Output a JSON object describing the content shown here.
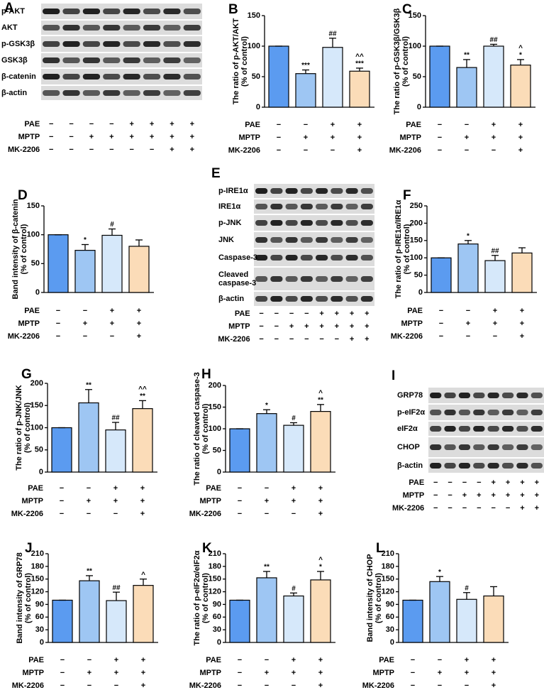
{
  "chart_data": [
    {
      "type": "bar",
      "letter": "B",
      "ylabel": [
        "The ratio of p-AKT/AKT",
        "(% of control)"
      ],
      "values": [
        100,
        55,
        98,
        59
      ],
      "errors": [
        0,
        6,
        15,
        5
      ],
      "colors": [
        "#5b9bf0",
        "#9ec6f3",
        "#d6e8fa",
        "#fbdcb8"
      ],
      "annotations": [
        null,
        [
          "***"
        ],
        [
          "##"
        ],
        [
          "^^",
          "***"
        ]
      ],
      "ylim": [
        0,
        150
      ],
      "yticks": [
        0,
        50,
        100,
        150
      ],
      "treatments": [
        {
          "label": "PAE",
          "signs": [
            "−",
            "−",
            "+",
            "+"
          ]
        },
        {
          "label": "MPTP",
          "signs": [
            "−",
            "+",
            "+",
            "+"
          ]
        },
        {
          "label": "MK-2206",
          "signs": [
            "−",
            "−",
            "−",
            "+"
          ]
        }
      ]
    },
    {
      "type": "bar",
      "letter": "C",
      "ylabel": [
        "The ratio of p-GSK3β/GSK3β",
        "(% of control)"
      ],
      "values": [
        100,
        65,
        100,
        69
      ],
      "errors": [
        0,
        13,
        3,
        9
      ],
      "colors": [
        "#5b9bf0",
        "#9ec6f3",
        "#d6e8fa",
        "#fbdcb8"
      ],
      "annotations": [
        null,
        [
          "**"
        ],
        [
          "##"
        ],
        [
          "^",
          "*"
        ]
      ],
      "ylim": [
        0,
        150
      ],
      "yticks": [
        0,
        50,
        100,
        150
      ],
      "treatments": [
        {
          "label": "PAE",
          "signs": [
            "−",
            "−",
            "+",
            "+"
          ]
        },
        {
          "label": "MPTP",
          "signs": [
            "−",
            "+",
            "+",
            "+"
          ]
        },
        {
          "label": "MK-2206",
          "signs": [
            "−",
            "−",
            "−",
            "+"
          ]
        }
      ]
    },
    {
      "type": "bar",
      "letter": "D",
      "ylabel": [
        "Band intensity of β-catenin",
        "(% of control)"
      ],
      "values": [
        100,
        73,
        99,
        80
      ],
      "errors": [
        0,
        10,
        11,
        11
      ],
      "colors": [
        "#5b9bf0",
        "#9ec6f3",
        "#d6e8fa",
        "#fbdcb8"
      ],
      "annotations": [
        null,
        [
          "*"
        ],
        [
          "#"
        ],
        null
      ],
      "ylim": [
        0,
        150
      ],
      "yticks": [
        0,
        50,
        100,
        150
      ],
      "treatments": [
        {
          "label": "PAE",
          "signs": [
            "−",
            "−",
            "+",
            "+"
          ]
        },
        {
          "label": "MPTP",
          "signs": [
            "−",
            "+",
            "+",
            "+"
          ]
        },
        {
          "label": "MK-2206",
          "signs": [
            "−",
            "−",
            "−",
            "+"
          ]
        }
      ]
    },
    {
      "type": "bar",
      "letter": "F",
      "ylabel": [
        "The ratio of p-IRE1α/IRE1α",
        "(% of control)"
      ],
      "values": [
        100,
        140,
        92,
        114
      ],
      "errors": [
        0,
        10,
        15,
        15
      ],
      "colors": [
        "#5b9bf0",
        "#9ec6f3",
        "#d6e8fa",
        "#fbdcb8"
      ],
      "annotations": [
        null,
        [
          "*"
        ],
        [
          "##"
        ],
        null
      ],
      "ylim": [
        0,
        250
      ],
      "yticks": [
        0,
        50,
        100,
        150,
        200,
        250
      ],
      "treatments": [
        {
          "label": "PAE",
          "signs": [
            "−",
            "−",
            "+",
            "+"
          ]
        },
        {
          "label": "MPTP",
          "signs": [
            "−",
            "+",
            "+",
            "+"
          ]
        },
        {
          "label": "MK-2206",
          "signs": [
            "−",
            "−",
            "−",
            "+"
          ]
        }
      ]
    },
    {
      "type": "bar",
      "letter": "G",
      "ylabel": [
        "The ratio of p-JNK/JNK",
        "(% of control)"
      ],
      "values": [
        100,
        156,
        95,
        143
      ],
      "errors": [
        0,
        30,
        17,
        18
      ],
      "colors": [
        "#5b9bf0",
        "#9ec6f3",
        "#d6e8fa",
        "#fbdcb8"
      ],
      "annotations": [
        null,
        [
          "**"
        ],
        [
          "##"
        ],
        [
          "^^",
          "**"
        ]
      ],
      "ylim": [
        0,
        200
      ],
      "yticks": [
        0,
        50,
        100,
        150,
        200
      ],
      "treatments": [
        {
          "label": "PAE",
          "signs": [
            "−",
            "−",
            "+",
            "+"
          ]
        },
        {
          "label": "MPTP",
          "signs": [
            "−",
            "+",
            "+",
            "+"
          ]
        },
        {
          "label": "MK-2206",
          "signs": [
            "−",
            "−",
            "−",
            "+"
          ]
        }
      ]
    },
    {
      "type": "bar",
      "letter": "H",
      "ylabel": [
        "The ratio of cleaved caspase-3",
        "(% of control)"
      ],
      "values": [
        100,
        135,
        108,
        140
      ],
      "errors": [
        0,
        9,
        6,
        16
      ],
      "colors": [
        "#5b9bf0",
        "#9ec6f3",
        "#d6e8fa",
        "#fbdcb8"
      ],
      "annotations": [
        null,
        [
          "*"
        ],
        [
          "#"
        ],
        [
          "^",
          "**"
        ]
      ],
      "ylim": [
        0,
        200
      ],
      "yticks": [
        0,
        50,
        100,
        150,
        200
      ],
      "treatments": [
        {
          "label": "PAE",
          "signs": [
            "−",
            "−",
            "+",
            "+"
          ]
        },
        {
          "label": "MPTP",
          "signs": [
            "−",
            "+",
            "+",
            "+"
          ]
        },
        {
          "label": "MK-2206",
          "signs": [
            "−",
            "−",
            "−",
            "+"
          ]
        }
      ]
    },
    {
      "type": "bar",
      "letter": "J",
      "ylabel": [
        "Band intensity of GRP78",
        "(% of control)"
      ],
      "values": [
        100,
        146,
        99,
        135
      ],
      "errors": [
        0,
        12,
        20,
        15
      ],
      "colors": [
        "#5b9bf0",
        "#9ec6f3",
        "#d6e8fa",
        "#fbdcb8"
      ],
      "annotations": [
        null,
        [
          "**"
        ],
        [
          "##"
        ],
        [
          "^"
        ]
      ],
      "ylim": [
        0,
        210
      ],
      "yticks": [
        0,
        30,
        60,
        90,
        120,
        150,
        180,
        210
      ],
      "treatments": [
        {
          "label": "PAE",
          "signs": [
            "−",
            "−",
            "+",
            "+"
          ]
        },
        {
          "label": "MPTP",
          "signs": [
            "−",
            "+",
            "+",
            "+"
          ]
        },
        {
          "label": "MK-2206",
          "signs": [
            "−",
            "−",
            "−",
            "+"
          ]
        }
      ]
    },
    {
      "type": "bar",
      "letter": "K",
      "ylabel": [
        "The ratio of p-eIF2α/eIF2α",
        "(% of control)"
      ],
      "values": [
        100,
        153,
        110,
        148
      ],
      "errors": [
        0,
        15,
        7,
        20
      ],
      "colors": [
        "#5b9bf0",
        "#9ec6f3",
        "#d6e8fa",
        "#fbdcb8"
      ],
      "annotations": [
        null,
        [
          "**"
        ],
        [
          "#"
        ],
        [
          "^",
          "*"
        ]
      ],
      "ylim": [
        0,
        210
      ],
      "yticks": [
        0,
        30,
        60,
        90,
        120,
        150,
        180,
        210
      ],
      "treatments": [
        {
          "label": "PAE",
          "signs": [
            "−",
            "−",
            "+",
            "+"
          ]
        },
        {
          "label": "MPTP",
          "signs": [
            "−",
            "+",
            "+",
            "+"
          ]
        },
        {
          "label": "MK-2206",
          "signs": [
            "−",
            "−",
            "−",
            "+"
          ]
        }
      ]
    },
    {
      "type": "bar",
      "letter": "L",
      "ylabel": [
        "Band intensity of CHOP",
        "(% of control)"
      ],
      "values": [
        100,
        144,
        102,
        110
      ],
      "errors": [
        0,
        12,
        16,
        22
      ],
      "colors": [
        "#5b9bf0",
        "#9ec6f3",
        "#d6e8fa",
        "#fbdcb8"
      ],
      "annotations": [
        null,
        [
          "*"
        ],
        [
          "#"
        ],
        null
      ],
      "ylim": [
        0,
        210
      ],
      "yticks": [
        0,
        30,
        60,
        90,
        120,
        150,
        180,
        210
      ],
      "treatments": [
        {
          "label": "PAE",
          "signs": [
            "−",
            "−",
            "+",
            "+"
          ]
        },
        {
          "label": "MPTP",
          "signs": [
            "−",
            "+",
            "+",
            "+"
          ]
        },
        {
          "label": "MK-2206",
          "signs": [
            "−",
            "−",
            "−",
            "+"
          ]
        }
      ]
    }
  ],
  "blots": [
    {
      "letter": "A",
      "bands": [
        [
          "p-AKT"
        ],
        [
          "AKT"
        ],
        [
          "p-GSK3β"
        ],
        [
          "GSK3β"
        ],
        [
          "β-catenin"
        ],
        [
          "β-actin"
        ]
      ],
      "treatments": [
        {
          "label": "PAE",
          "signs": [
            "−",
            "−",
            "−",
            "−",
            "+",
            "+",
            "+",
            "+"
          ]
        },
        {
          "label": "MPTP",
          "signs": [
            "−",
            "−",
            "+",
            "+",
            "+",
            "+",
            "+",
            "+"
          ]
        },
        {
          "label": "MK-2206",
          "signs": [
            "−",
            "−",
            "−",
            "−",
            "−",
            "−",
            "+",
            "+"
          ]
        }
      ]
    },
    {
      "letter": "E",
      "bands": [
        [
          "p-IRE1α"
        ],
        [
          "IRE1α"
        ],
        [
          "p-JNK"
        ],
        [
          "JNK"
        ],
        [
          "Caspase-3"
        ],
        [
          "Cleaved",
          "caspase-3"
        ],
        [
          "β-actin"
        ]
      ],
      "treatments": [
        {
          "label": "PAE",
          "signs": [
            "−",
            "−",
            "−",
            "−",
            "+",
            "+",
            "+",
            "+"
          ]
        },
        {
          "label": "MPTP",
          "signs": [
            "−",
            "−",
            "+",
            "+",
            "+",
            "+",
            "+",
            "+"
          ]
        },
        {
          "label": "MK-2206",
          "signs": [
            "−",
            "−",
            "−",
            "−",
            "−",
            "−",
            "+",
            "+"
          ]
        }
      ]
    },
    {
      "letter": "I",
      "bands": [
        [
          "GRP78"
        ],
        [
          "p-eIF2α"
        ],
        [
          "eIF2α"
        ],
        [
          "CHOP"
        ],
        [
          "β-actin"
        ]
      ],
      "treatments": [
        {
          "label": "PAE",
          "signs": [
            "−",
            "−",
            "−",
            "−",
            "+",
            "+",
            "+",
            "+"
          ]
        },
        {
          "label": "MPTP",
          "signs": [
            "−",
            "−",
            "+",
            "+",
            "+",
            "+",
            "+",
            "+"
          ]
        },
        {
          "label": "MK-2206",
          "signs": [
            "−",
            "−",
            "−",
            "−",
            "−",
            "−",
            "+",
            "+"
          ]
        }
      ]
    }
  ]
}
